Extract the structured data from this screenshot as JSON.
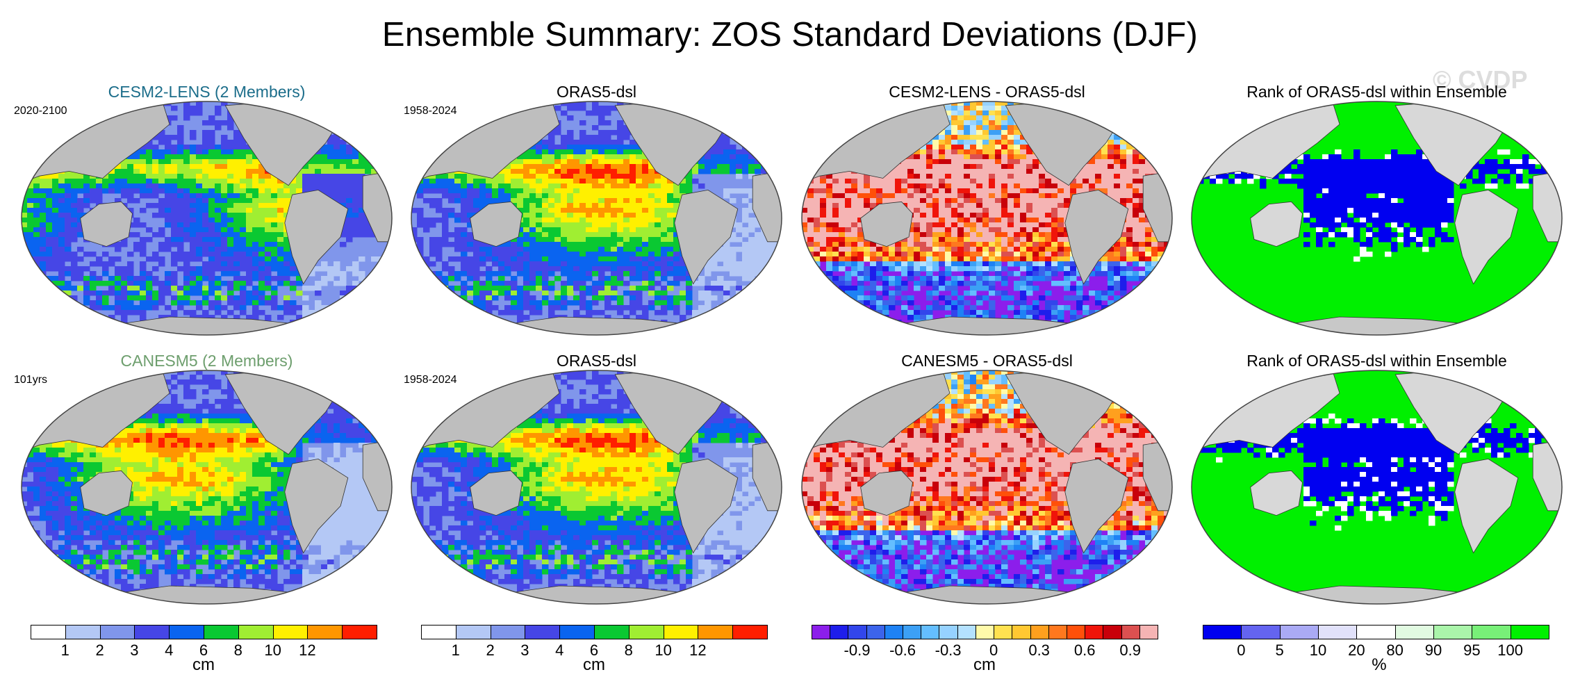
{
  "title": "Ensemble Summary: ZOS Standard Deviations (DJF)",
  "watermark": "© CVDP",
  "panels": [
    {
      "title": "CESM2-LENS (2 Members)",
      "title_color": "#1b6d8a",
      "period": "2020-2100",
      "kind": "std",
      "seed": 3
    },
    {
      "title": "ORAS5-dsl",
      "title_color": "#000000",
      "period": "1958-2024",
      "kind": "std",
      "seed": 11
    },
    {
      "title": "CESM2-LENS - ORAS5-dsl",
      "title_color": "#000000",
      "period": "",
      "kind": "diff",
      "seed": 23
    },
    {
      "title": "Rank of ORAS5-dsl within Ensemble",
      "title_color": "#000000",
      "period": "",
      "kind": "rank",
      "seed": 31
    },
    {
      "title": "CANESM5 (2 Members)",
      "title_color": "#6d9e6d",
      "period": "101yrs",
      "kind": "std",
      "seed": 43
    },
    {
      "title": "ORAS5-dsl",
      "title_color": "#000000",
      "period": "1958-2024",
      "kind": "std",
      "seed": 11
    },
    {
      "title": "CANESM5 - ORAS5-dsl",
      "title_color": "#000000",
      "period": "",
      "kind": "diff",
      "seed": 59
    },
    {
      "title": "Rank of ORAS5-dsl within Ensemble",
      "title_color": "#000000",
      "period": "",
      "kind": "rank",
      "seed": 67
    }
  ],
  "colorbars": [
    {
      "unit": "cm",
      "ticks": [
        "1",
        "2",
        "3",
        "4",
        "6",
        "8",
        "10",
        "12"
      ],
      "colors": [
        "#ffffff",
        "#b4c8f5",
        "#8096eb",
        "#4646e6",
        "#0a64f0",
        "#0ac832",
        "#a0ee32",
        "#fff000",
        "#ff9600",
        "#ff1e00"
      ]
    },
    {
      "unit": "cm",
      "ticks": [
        "1",
        "2",
        "3",
        "4",
        "6",
        "8",
        "10",
        "12"
      ],
      "colors": [
        "#ffffff",
        "#b4c8f5",
        "#8096eb",
        "#4646e6",
        "#0a64f0",
        "#0ac832",
        "#a0ee32",
        "#fff000",
        "#ff9600",
        "#ff1e00"
      ]
    },
    {
      "unit": "cm",
      "ticks": [
        "-0.9",
        "-0.6",
        "-0.3",
        "0",
        "0.3",
        "0.6",
        "0.9"
      ],
      "colors": [
        "#8c1eeb",
        "#1e1eeb",
        "#3246eb",
        "#3c64eb",
        "#1e82f5",
        "#3ca0f5",
        "#64beff",
        "#96d2ff",
        "#b4e1ff",
        "#fffaaa",
        "#ffe150",
        "#ffc832",
        "#ffa01e",
        "#ff781e",
        "#ff500a",
        "#f0140a",
        "#c8000a",
        "#dc5050",
        "#f5b4b4"
      ]
    },
    {
      "unit": "%",
      "ticks": [
        "0",
        "5",
        "10",
        "20",
        "80",
        "90",
        "95",
        "100"
      ],
      "colors": [
        "#0000f0",
        "#6464f0",
        "#aaaaf5",
        "#e1e1fa",
        "#ffffff",
        "#e1fae1",
        "#aaf5aa",
        "#78f078",
        "#00f000"
      ]
    }
  ],
  "map_colors": {
    "land": "#bebebe",
    "rank_land": "#d8d8d8",
    "rank_land_bottom": "#c8c8c8"
  }
}
